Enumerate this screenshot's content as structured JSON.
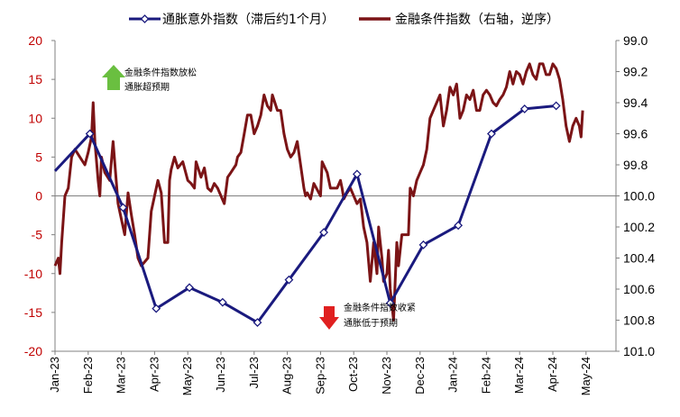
{
  "chart_data": {
    "type": "line",
    "legend": {
      "position": "top",
      "items": [
        {
          "label": "通胀意外指数（滞后约1个月）",
          "color": "#1a1a7e",
          "marker": "diamond"
        },
        {
          "label": "金融条件指数（右轴，逆序）",
          "color": "#7b1416",
          "marker": "none"
        }
      ]
    },
    "x_ticks": [
      "Jan-23",
      "Feb-23",
      "Mar-23",
      "Apr-23",
      "May-23",
      "Jun-23",
      "Jul-23",
      "Aug-23",
      "Sep-23",
      "Oct-23",
      "Nov-23",
      "Dec-23",
      "Jan-24",
      "Feb-24",
      "Mar-24",
      "Apr-24",
      "May-24"
    ],
    "left_axis": {
      "ylim": [
        -20,
        20
      ],
      "ticks": [
        "20",
        "15",
        "10",
        "5",
        "0",
        "-5",
        "-10",
        "-15",
        "-20"
      ],
      "color": "#c00000"
    },
    "right_axis": {
      "ylim": [
        99.0,
        101.0
      ],
      "inverted": true,
      "ticks": [
        "99.0",
        "99.2",
        "99.4",
        "99.6",
        "99.8",
        "100.0",
        "100.2",
        "100.4",
        "100.6",
        "100.8",
        "101.0"
      ]
    },
    "series": [
      {
        "name": "通胀意外指数（滞后约1个月）",
        "axis": "left",
        "points": [
          [
            0.0,
            3.2
          ],
          [
            1.05,
            8.0
          ],
          [
            2.05,
            -1.5
          ],
          [
            3.05,
            -14.5
          ],
          [
            4.05,
            -11.8
          ],
          [
            5.05,
            -13.7
          ],
          [
            6.1,
            -16.3
          ],
          [
            7.05,
            -10.8
          ],
          [
            8.1,
            -4.7
          ],
          [
            9.1,
            2.8
          ],
          [
            10.1,
            -13.8
          ],
          [
            11.1,
            -6.3
          ],
          [
            12.15,
            -3.8
          ],
          [
            13.15,
            8.0
          ],
          [
            14.15,
            11.2
          ],
          [
            15.1,
            11.6
          ]
        ]
      },
      {
        "name": "金融条件指数（右轴，逆序）",
        "axis": "right",
        "points": [
          [
            0.0,
            100.45
          ],
          [
            0.1,
            100.4
          ],
          [
            0.15,
            100.5
          ],
          [
            0.2,
            100.3
          ],
          [
            0.3,
            100.0
          ],
          [
            0.4,
            99.95
          ],
          [
            0.5,
            99.75
          ],
          [
            0.6,
            99.7
          ],
          [
            0.75,
            99.75
          ],
          [
            0.9,
            99.8
          ],
          [
            1.0,
            99.72
          ],
          [
            1.1,
            99.62
          ],
          [
            1.15,
            99.4
          ],
          [
            1.2,
            99.65
          ],
          [
            1.3,
            99.9
          ],
          [
            1.35,
            100.0
          ],
          [
            1.4,
            99.75
          ],
          [
            1.5,
            99.85
          ],
          [
            1.65,
            99.9
          ],
          [
            1.75,
            99.65
          ],
          [
            1.9,
            100.05
          ],
          [
            2.0,
            100.15
          ],
          [
            2.1,
            100.25
          ],
          [
            2.2,
            99.98
          ],
          [
            2.3,
            100.12
          ],
          [
            2.4,
            100.25
          ],
          [
            2.5,
            100.4
          ],
          [
            2.6,
            100.45
          ],
          [
            2.8,
            100.4
          ],
          [
            2.9,
            100.1
          ],
          [
            3.0,
            100.0
          ],
          [
            3.1,
            99.9
          ],
          [
            3.2,
            99.98
          ],
          [
            3.3,
            100.3
          ],
          [
            3.4,
            100.3
          ],
          [
            3.45,
            99.9
          ],
          [
            3.5,
            99.83
          ],
          [
            3.6,
            99.75
          ],
          [
            3.7,
            99.82
          ],
          [
            3.85,
            99.78
          ],
          [
            4.0,
            99.9
          ],
          [
            4.1,
            99.92
          ],
          [
            4.2,
            99.95
          ],
          [
            4.25,
            99.78
          ],
          [
            4.4,
            99.88
          ],
          [
            4.5,
            99.82
          ],
          [
            4.6,
            99.95
          ],
          [
            4.7,
            99.97
          ],
          [
            4.8,
            99.92
          ],
          [
            4.9,
            99.95
          ],
          [
            5.0,
            100.0
          ],
          [
            5.1,
            100.05
          ],
          [
            5.2,
            99.88
          ],
          [
            5.3,
            99.85
          ],
          [
            5.45,
            99.8
          ],
          [
            5.5,
            99.75
          ],
          [
            5.6,
            99.72
          ],
          [
            5.7,
            99.6
          ],
          [
            5.8,
            99.48
          ],
          [
            5.9,
            99.48
          ],
          [
            6.0,
            99.6
          ],
          [
            6.1,
            99.55
          ],
          [
            6.2,
            99.48
          ],
          [
            6.3,
            99.35
          ],
          [
            6.4,
            99.42
          ],
          [
            6.5,
            99.45
          ],
          [
            6.55,
            99.35
          ],
          [
            6.7,
            99.45
          ],
          [
            6.8,
            99.45
          ],
          [
            6.9,
            99.6
          ],
          [
            7.0,
            99.7
          ],
          [
            7.1,
            99.75
          ],
          [
            7.2,
            99.72
          ],
          [
            7.3,
            99.65
          ],
          [
            7.4,
            99.8
          ],
          [
            7.5,
            99.95
          ],
          [
            7.55,
            100.0
          ],
          [
            7.6,
            99.98
          ],
          [
            7.7,
            100.02
          ],
          [
            7.8,
            99.92
          ],
          [
            7.9,
            99.96
          ],
          [
            8.0,
            100.0
          ],
          [
            8.05,
            99.78
          ],
          [
            8.2,
            99.85
          ],
          [
            8.3,
            99.95
          ],
          [
            8.4,
            99.95
          ],
          [
            8.5,
            99.95
          ],
          [
            8.6,
            99.9
          ],
          [
            8.65,
            99.95
          ],
          [
            8.7,
            100.02
          ],
          [
            8.8,
            99.98
          ],
          [
            8.9,
            99.95
          ],
          [
            9.0,
            100.0
          ],
          [
            9.1,
            100.05
          ],
          [
            9.2,
            100.02
          ],
          [
            9.3,
            100.2
          ],
          [
            9.4,
            100.3
          ],
          [
            9.5,
            100.55
          ],
          [
            9.6,
            100.3
          ],
          [
            9.7,
            100.5
          ],
          [
            9.75,
            100.2
          ],
          [
            9.85,
            100.4
          ],
          [
            9.9,
            100.55
          ],
          [
            10.0,
            100.5
          ],
          [
            10.05,
            100.35
          ],
          [
            10.1,
            100.6
          ],
          [
            10.2,
            100.8
          ],
          [
            10.3,
            100.3
          ],
          [
            10.35,
            100.45
          ],
          [
            10.45,
            100.25
          ],
          [
            10.6,
            100.25
          ],
          [
            10.65,
            100.25
          ],
          [
            10.7,
            99.95
          ],
          [
            10.8,
            100.0
          ],
          [
            10.9,
            99.9
          ],
          [
            11.0,
            99.85
          ],
          [
            11.1,
            99.8
          ],
          [
            11.2,
            99.7
          ],
          [
            11.3,
            99.5
          ],
          [
            11.4,
            99.45
          ],
          [
            11.5,
            99.4
          ],
          [
            11.6,
            99.35
          ],
          [
            11.7,
            99.55
          ],
          [
            11.8,
            99.45
          ],
          [
            11.9,
            99.3
          ],
          [
            12.0,
            99.35
          ],
          [
            12.1,
            99.28
          ],
          [
            12.2,
            99.5
          ],
          [
            12.3,
            99.45
          ],
          [
            12.4,
            99.35
          ],
          [
            12.5,
            99.38
          ],
          [
            12.6,
            99.32
          ],
          [
            12.7,
            99.45
          ],
          [
            12.8,
            99.45
          ],
          [
            12.9,
            99.35
          ],
          [
            13.0,
            99.32
          ],
          [
            13.1,
            99.35
          ],
          [
            13.2,
            99.4
          ],
          [
            13.3,
            99.42
          ],
          [
            13.4,
            99.38
          ],
          [
            13.5,
            99.35
          ],
          [
            13.6,
            99.3
          ],
          [
            13.7,
            99.2
          ],
          [
            13.8,
            99.28
          ],
          [
            13.9,
            99.2
          ],
          [
            14.0,
            99.22
          ],
          [
            14.1,
            99.28
          ],
          [
            14.2,
            99.2
          ],
          [
            14.3,
            99.15
          ],
          [
            14.4,
            99.22
          ],
          [
            14.5,
            99.25
          ],
          [
            14.6,
            99.15
          ],
          [
            14.7,
            99.15
          ],
          [
            14.8,
            99.22
          ],
          [
            14.9,
            99.22
          ],
          [
            15.0,
            99.15
          ],
          [
            15.1,
            99.18
          ],
          [
            15.2,
            99.25
          ],
          [
            15.3,
            99.38
          ],
          [
            15.4,
            99.55
          ],
          [
            15.5,
            99.65
          ],
          [
            15.6,
            99.55
          ],
          [
            15.7,
            99.5
          ],
          [
            15.8,
            99.55
          ],
          [
            15.85,
            99.62
          ],
          [
            15.9,
            99.45
          ]
        ]
      }
    ],
    "annotations": [
      {
        "text": [
          "金融条件指数放松",
          "通胀超预期"
        ],
        "arrow": "up",
        "arrow_color": "#6abf40"
      },
      {
        "text": [
          "金融条件指数收紧",
          "通胀低于预期"
        ],
        "arrow": "down",
        "arrow_color": "#e02020"
      }
    ]
  }
}
